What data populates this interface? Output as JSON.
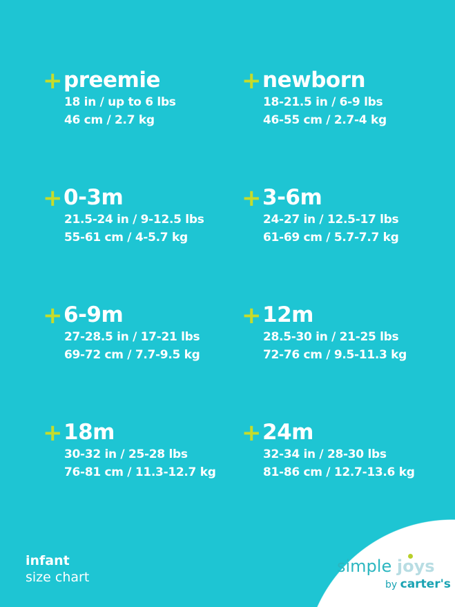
{
  "colors": {
    "background": "#1ec5d3",
    "plus": "#c6dc2a"
  },
  "sizes": [
    {
      "name": "preemie",
      "imperial": "18 in / up to 6 lbs",
      "metric": "46 cm / 2.7 kg"
    },
    {
      "name": "newborn",
      "imperial": "18-21.5 in / 6-9 lbs",
      "metric": "46-55 cm / 2.7-4 kg"
    },
    {
      "name": "0-3m",
      "imperial": "21.5-24 in / 9-12.5 lbs",
      "metric": "55-61 cm / 4-5.7 kg"
    },
    {
      "name": "3-6m",
      "imperial": "24-27 in / 12.5-17 lbs",
      "metric": "61-69 cm / 5.7-7.7 kg"
    },
    {
      "name": "6-9m",
      "imperial": "27-28.5 in / 17-21 lbs",
      "metric": "69-72 cm / 7.7-9.5 kg"
    },
    {
      "name": "12m",
      "imperial": "28.5-30 in / 21-25 lbs",
      "metric": "72-76 cm / 9.5-11.3 kg"
    },
    {
      "name": "18m",
      "imperial": "30-32 in / 25-28 lbs",
      "metric": "76-81 cm / 11.3-12.7 kg"
    },
    {
      "name": "24m",
      "imperial": "32-34 in / 28-30 lbs",
      "metric": "81-86 cm / 12.7-13.6 kg"
    }
  ],
  "plus_symbol": "+",
  "footer": {
    "line1": "infant",
    "line2": "size chart"
  },
  "logo": {
    "simple": "simple",
    "joys": "joys",
    "by": "by",
    "brand": "carter's"
  }
}
